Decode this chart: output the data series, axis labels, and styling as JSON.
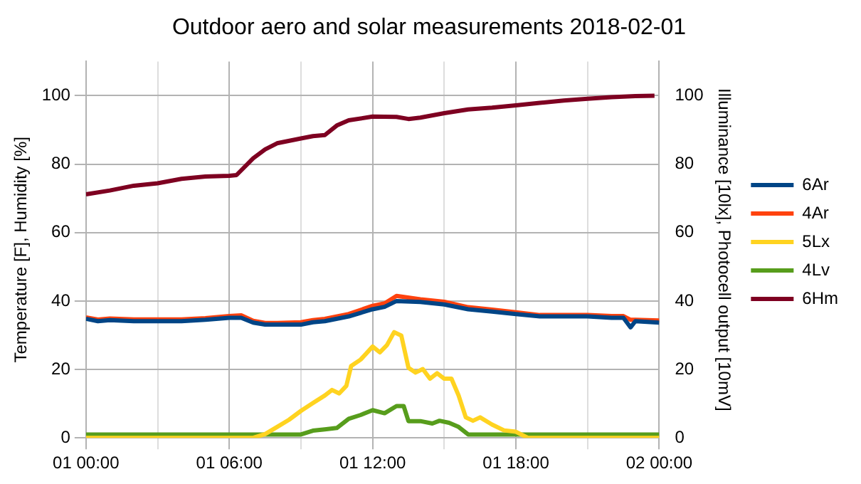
{
  "chart_data": {
    "type": "line",
    "title": "Outdoor aero and solar measurements 2018-02-01",
    "ylabel": "Temperature [F], Humidity [%]",
    "y2label": "Illuminance [10lx], Photocell output [10mV]",
    "xlim": [
      "2018-02-01T00:00",
      "2018-02-02T00:00"
    ],
    "xticks": [
      {
        "value": "2018-02-01T00:00",
        "label": "01 00:00"
      },
      {
        "value": "2018-02-01T03:00",
        "label": null
      },
      {
        "value": "2018-02-01T06:00",
        "label": "01 06:00"
      },
      {
        "value": "2018-02-01T09:00",
        "label": null
      },
      {
        "value": "2018-02-01T12:00",
        "label": "01 12:00"
      },
      {
        "value": "2018-02-01T15:00",
        "label": null
      },
      {
        "value": "2018-02-01T18:00",
        "label": "01 18:00"
      },
      {
        "value": "2018-02-01T21:00",
        "label": null
      },
      {
        "value": "2018-02-02T00:00",
        "label": "02 00:00"
      }
    ],
    "ylim": [
      0,
      110
    ],
    "yticks": [
      0,
      20,
      40,
      60,
      80,
      100
    ],
    "y2lim": [
      0,
      110
    ],
    "y2ticks": [
      0,
      20,
      40,
      60,
      80,
      100
    ],
    "grid": true,
    "legend": "right",
    "marker": "none",
    "line_style": "solid",
    "series": [
      {
        "name": "6Ar",
        "color": "#004586",
        "x": [
          "2018-02-01T00:00",
          "2018-02-01T00:30",
          "2018-02-01T01:00",
          "2018-02-01T02:00",
          "2018-02-01T03:00",
          "2018-02-01T04:00",
          "2018-02-01T05:00",
          "2018-02-01T06:00",
          "2018-02-01T06:30",
          "2018-02-01T07:00",
          "2018-02-01T07:30",
          "2018-02-01T08:00",
          "2018-02-01T09:00",
          "2018-02-01T09:30",
          "2018-02-01T10:00",
          "2018-02-01T11:00",
          "2018-02-01T12:00",
          "2018-02-01T12:30",
          "2018-02-01T13:00",
          "2018-02-01T14:00",
          "2018-02-01T15:00",
          "2018-02-01T16:00",
          "2018-02-01T17:00",
          "2018-02-01T18:00",
          "2018-02-01T19:00",
          "2018-02-01T20:00",
          "2018-02-01T21:00",
          "2018-02-01T22:00",
          "2018-02-01T22:30",
          "2018-02-01T22:48",
          "2018-02-01T23:00",
          "2018-02-02T00:00"
        ],
        "values": [
          34.8,
          34.1,
          34.4,
          34.1,
          34.1,
          34.1,
          34.5,
          35.1,
          35.1,
          33.7,
          33.1,
          33.1,
          33.1,
          33.8,
          34.1,
          35.5,
          37.6,
          38.3,
          40,
          39.7,
          39,
          37.6,
          36.9,
          36.2,
          35.5,
          35.5,
          35.5,
          35.1,
          35.1,
          32.3,
          34.1,
          33.7
        ]
      },
      {
        "name": "4Ar",
        "color": "#ff420e",
        "x": [
          "2018-02-01T00:00",
          "2018-02-01T00:30",
          "2018-02-01T01:00",
          "2018-02-01T02:00",
          "2018-02-01T03:00",
          "2018-02-01T04:00",
          "2018-02-01T05:00",
          "2018-02-01T06:00",
          "2018-02-01T06:30",
          "2018-02-01T07:00",
          "2018-02-01T07:30",
          "2018-02-01T08:00",
          "2018-02-01T09:00",
          "2018-02-01T09:30",
          "2018-02-01T10:00",
          "2018-02-01T11:00",
          "2018-02-01T12:00",
          "2018-02-01T12:30",
          "2018-02-01T13:00",
          "2018-02-01T14:00",
          "2018-02-01T15:00",
          "2018-02-01T16:00",
          "2018-02-01T17:00",
          "2018-02-01T18:00",
          "2018-02-01T19:00",
          "2018-02-01T20:00",
          "2018-02-01T21:00",
          "2018-02-01T22:00",
          "2018-02-01T22:30",
          "2018-02-01T22:48",
          "2018-02-01T23:00",
          "2018-02-02T00:00"
        ],
        "values": [
          35.2,
          34.6,
          34.9,
          34.6,
          34.6,
          34.6,
          35,
          35.6,
          35.8,
          34.2,
          33.6,
          33.6,
          33.8,
          34.4,
          34.8,
          36.2,
          38.6,
          39.3,
          41.5,
          40.5,
          39.8,
          38.2,
          37.5,
          36.7,
          35.9,
          35.9,
          35.9,
          35.6,
          35.6,
          34.5,
          34.5,
          34.3
        ]
      },
      {
        "name": "5Lx",
        "color": "#ffd320",
        "axis": "y2",
        "x": [
          "2018-02-01T00:00",
          "2018-02-01T07:00",
          "2018-02-01T07:30",
          "2018-02-01T08:00",
          "2018-02-01T08:30",
          "2018-02-01T09:00",
          "2018-02-01T09:30",
          "2018-02-01T10:00",
          "2018-02-01T10:18",
          "2018-02-01T10:36",
          "2018-02-01T10:54",
          "2018-02-01T11:06",
          "2018-02-01T11:30",
          "2018-02-01T12:00",
          "2018-02-01T12:18",
          "2018-02-01T12:36",
          "2018-02-01T12:54",
          "2018-02-01T13:12",
          "2018-02-01T13:30",
          "2018-02-01T13:48",
          "2018-02-01T14:06",
          "2018-02-01T14:24",
          "2018-02-01T14:42",
          "2018-02-01T15:00",
          "2018-02-01T15:18",
          "2018-02-01T15:36",
          "2018-02-01T15:54",
          "2018-02-01T16:12",
          "2018-02-01T16:30",
          "2018-02-01T17:00",
          "2018-02-01T17:30",
          "2018-02-01T18:00",
          "2018-02-01T18:30",
          "2018-02-02T00:00"
        ],
        "values": [
          0,
          0,
          1.1,
          3.2,
          5.3,
          7.9,
          10.2,
          12.4,
          14,
          13,
          15.2,
          21,
          22.9,
          26.7,
          25,
          27.1,
          30.9,
          29.9,
          20.5,
          19.1,
          20.1,
          17.3,
          18.9,
          17.3,
          17.3,
          12.4,
          6,
          5,
          6,
          3.9,
          2.2,
          1.8,
          0,
          0
        ]
      },
      {
        "name": "4Lv",
        "color": "#579d1c",
        "axis": "y2",
        "x": [
          "2018-02-01T00:00",
          "2018-02-01T09:00",
          "2018-02-01T09:30",
          "2018-02-01T10:00",
          "2018-02-01T10:30",
          "2018-02-01T11:00",
          "2018-02-01T11:30",
          "2018-02-01T12:00",
          "2018-02-01T12:30",
          "2018-02-01T13:00",
          "2018-02-01T13:18",
          "2018-02-01T13:30",
          "2018-02-01T14:00",
          "2018-02-01T14:30",
          "2018-02-01T14:48",
          "2018-02-01T15:12",
          "2018-02-01T15:36",
          "2018-02-01T16:00",
          "2018-02-02T00:00"
        ],
        "values": [
          1,
          1,
          2.1,
          2.5,
          2.9,
          5.6,
          6.7,
          8.1,
          7.2,
          9.3,
          9.3,
          4.9,
          4.9,
          4.2,
          5,
          4.4,
          3.2,
          1,
          1
        ]
      },
      {
        "name": "6Hm",
        "color": "#7e0021",
        "x": [
          "2018-02-01T00:00",
          "2018-02-01T01:00",
          "2018-02-01T02:00",
          "2018-02-01T03:00",
          "2018-02-01T04:00",
          "2018-02-01T05:00",
          "2018-02-01T06:00",
          "2018-02-01T06:18",
          "2018-02-01T07:00",
          "2018-02-01T07:30",
          "2018-02-01T08:00",
          "2018-02-01T09:00",
          "2018-02-01T09:30",
          "2018-02-01T10:00",
          "2018-02-01T10:30",
          "2018-02-01T11:00",
          "2018-02-01T12:00",
          "2018-02-01T13:00",
          "2018-02-01T13:30",
          "2018-02-01T14:00",
          "2018-02-01T15:00",
          "2018-02-01T16:00",
          "2018-02-01T17:00",
          "2018-02-01T18:00",
          "2018-02-01T19:00",
          "2018-02-01T20:00",
          "2018-02-01T21:00",
          "2018-02-01T22:00",
          "2018-02-01T23:00",
          "2018-02-01T23:48"
        ],
        "values": [
          71.2,
          72.3,
          73.7,
          74.4,
          75.7,
          76.4,
          76.6,
          76.8,
          81.7,
          84.3,
          86.1,
          87.5,
          88.2,
          88.5,
          91.3,
          92.8,
          93.9,
          93.8,
          93.2,
          93.6,
          94.9,
          96,
          96.5,
          97.2,
          97.9,
          98.6,
          99.1,
          99.6,
          99.9,
          100
        ]
      }
    ]
  }
}
